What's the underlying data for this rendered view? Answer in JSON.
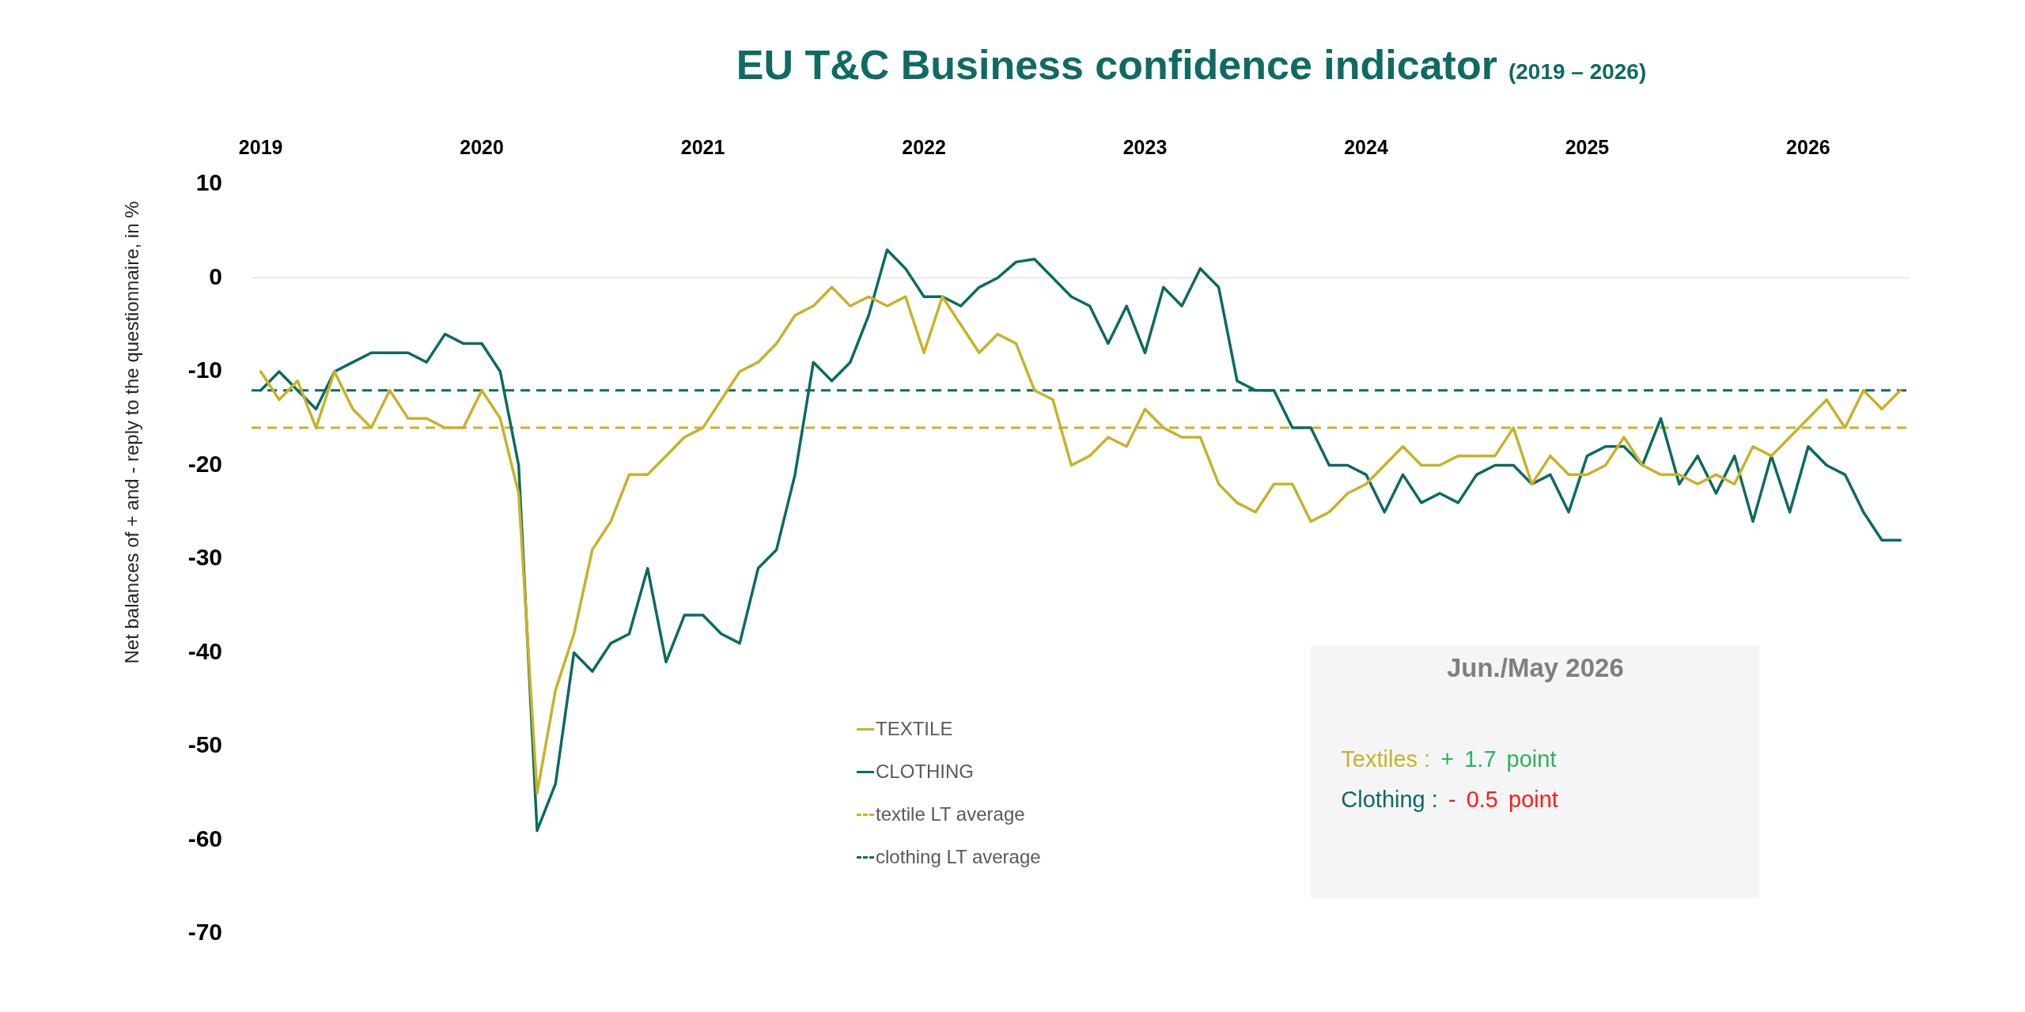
{
  "chart_data": {
    "type": "line",
    "title": "EU T&C Business confidence indicator",
    "subtitle": "(2019 – 2026)",
    "ylabel": "Net balances of + and - reply to the questionnaire, in %",
    "categories": [
      "2019",
      null,
      null,
      null,
      null,
      null,
      null,
      null,
      null,
      null,
      null,
      null,
      "2020",
      null,
      null,
      null,
      null,
      null,
      null,
      null,
      null,
      null,
      null,
      null,
      "2021",
      null,
      null,
      null,
      null,
      null,
      null,
      null,
      null,
      null,
      null,
      null,
      "2022",
      null,
      null,
      null,
      null,
      null,
      null,
      null,
      null,
      null,
      null,
      null,
      "2023",
      null,
      null,
      null,
      null,
      null,
      null,
      null,
      null,
      null,
      null,
      null,
      "2024",
      null,
      null,
      null,
      null,
      null,
      null,
      null,
      null,
      null,
      null,
      null,
      "2025",
      null,
      null,
      null,
      null,
      null,
      null,
      null,
      null,
      null,
      null,
      null,
      "2026",
      null,
      null,
      null,
      null,
      null
    ],
    "series": [
      {
        "name": "TEXTILE",
        "color": "#c8b22a",
        "values": [
          -10,
          -13,
          -11,
          -16,
          -10,
          -14,
          -16,
          -12,
          -15,
          -15,
          -16,
          -16,
          -12,
          -15,
          -23,
          -55,
          -44,
          -38,
          -29,
          -26,
          -21,
          -21,
          -19,
          -17,
          -16,
          -13,
          -10,
          -9,
          -7,
          -4,
          -3,
          -1,
          -3,
          -2,
          -3,
          -2,
          -8,
          -2,
          -5,
          -8,
          -6,
          -7,
          -12,
          -13,
          -20,
          -19,
          -17,
          -18,
          -14,
          -16,
          -17,
          -17,
          -22,
          -24,
          -25,
          -22,
          -22,
          -26,
          -25,
          -23,
          -22,
          -20,
          -18,
          -20,
          -20,
          -19,
          -19,
          -19,
          -16,
          -22,
          -19,
          -21,
          -21,
          -20,
          -17,
          -20,
          -21,
          -21,
          -22,
          -21,
          -22,
          -18,
          -19,
          -17,
          -15,
          -13,
          -16,
          -12,
          -14,
          -12
        ]
      },
      {
        "name": "CLOTHING",
        "color": "#0b6b62",
        "values": [
          -12,
          -10,
          -12,
          -14,
          -10,
          -9,
          -8,
          -8,
          -8,
          -9,
          -6,
          -7,
          -7,
          -10,
          -20,
          -59,
          -54,
          -40,
          -42,
          -39,
          -38,
          -31,
          -41,
          -36,
          -36,
          -38,
          -39,
          -31,
          -29,
          -21,
          -9,
          -11,
          -9,
          -4,
          3,
          1,
          -2,
          -2,
          -3,
          -1,
          0,
          1.7,
          2,
          0,
          -2,
          -3,
          -7,
          -3,
          -8,
          -1,
          -3,
          1,
          -1,
          -11,
          -12,
          -12,
          -16,
          -16,
          -20,
          -20,
          -21,
          -25,
          -21,
          -24,
          -23,
          -24,
          -21,
          -20,
          -20,
          -22,
          -21,
          -25,
          -19,
          -18,
          -18,
          -20,
          -15,
          -22,
          -19,
          -23,
          -19,
          -26,
          -19,
          -25,
          -18,
          -20,
          -21,
          -25,
          -28,
          -28
        ]
      }
    ],
    "ylim": [
      -70,
      10
    ],
    "yticks": [
      -70,
      -60,
      -50,
      -40,
      -30,
      -20,
      -10,
      0,
      10
    ],
    "ref_lines": [
      {
        "axis": "y",
        "value": 0,
        "color": "#e8e8e8"
      },
      {
        "axis": "y",
        "value": -16,
        "label": "textile LT average",
        "color": "#c8b22a",
        "line_style": "dashed"
      },
      {
        "axis": "y",
        "value": -12,
        "label": "clothing LT average",
        "color": "#0b6b62",
        "line_style": "dashed"
      }
    ],
    "annotations": [
      "Jun./May 2026",
      "Textiles : + 1.7 point",
      "Clothing : - 0.5 point"
    ],
    "legend": "bottom",
    "grid": false,
    "marker": "none"
  }
}
